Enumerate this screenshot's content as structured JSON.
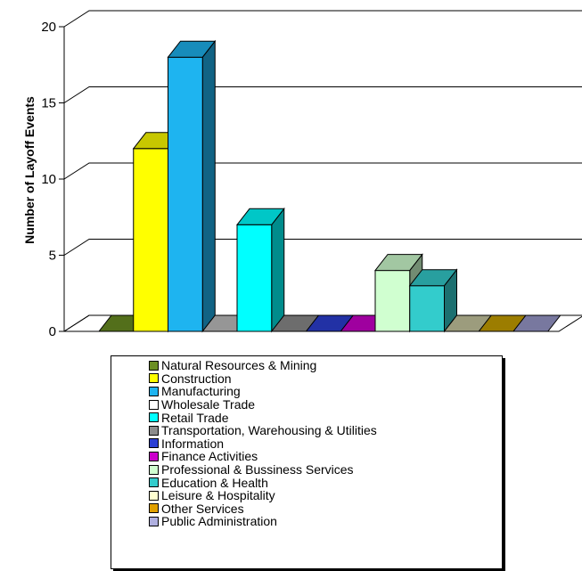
{
  "chart_data": {
    "type": "bar",
    "title": "",
    "xlabel": "",
    "ylabel": "Number of Layoff Events",
    "ylim": [
      0,
      20
    ],
    "yticks": [
      0,
      5,
      10,
      15,
      20
    ],
    "grid": true,
    "legend_position": "bottom",
    "categories": [
      "Natural Resources & Mining",
      "Construction",
      "Manufacturing",
      "Wholesale Trade",
      "Retail Trade",
      "Transportation, Warehousing & Utilities",
      "Information",
      "Finance Activities",
      "Professional & Bussiness Services",
      "Education & Health",
      "Leisure & Hospitality",
      "Other Services",
      "Public Administration"
    ],
    "values": [
      0,
      12,
      18,
      0,
      7,
      0,
      0,
      0,
      4,
      3,
      0,
      0,
      0
    ],
    "colors": [
      "#6b8e23",
      "#ffff00",
      "#1eb4f0",
      "#c0c0c0",
      "#00ffff",
      "#8c8c8c",
      "#2b3fd4",
      "#cc00cc",
      "#d0ffd0",
      "#33cccc",
      "#c8c8a0",
      "#c8a000",
      "#9a9acc"
    ],
    "legend_colors": [
      "#6b8e23",
      "#ffff00",
      "#1eb4f0",
      "#ffffff",
      "#00ffff",
      "#8c8c8c",
      "#2b3fd4",
      "#cc00cc",
      "#d0ffd0",
      "#33cccc",
      "#ffffd0",
      "#e0a000",
      "#b0b0e0"
    ]
  }
}
